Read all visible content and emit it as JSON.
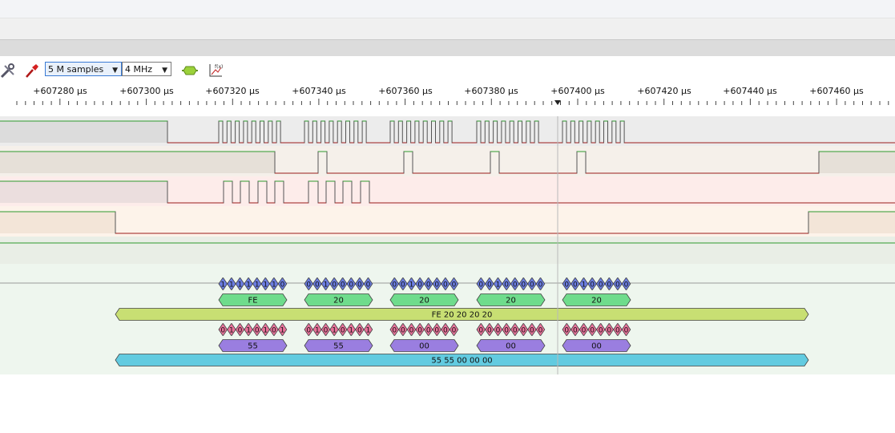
{
  "toolbar": {
    "samples_select": {
      "value": "5 M samples"
    },
    "rate_select": {
      "value": "4 MHz"
    },
    "icons": [
      "wrench-screwdriver-icon",
      "probe-icon",
      "decoder-add-icon",
      "math-function-icon"
    ]
  },
  "ruler": {
    "ticks": [
      "+607280 µs",
      "+607300 µs",
      "+607320 µs",
      "+607340 µs",
      "+607360 µs",
      "+607380 µs",
      "+607400 µs",
      "+607420 µs",
      "+607440 µs",
      "+607460 µs"
    ]
  },
  "colors": {
    "waveform_high": "#2e9a2e",
    "waveform_low": "#9b1b1b",
    "bit_mosi": "#6b7de0",
    "bit_miso": "#e8729a",
    "byte_mosi": "#6fdc8c",
    "byte_miso": "#9a7ee0",
    "transfer_mosi": "#c8df73",
    "transfer_miso": "#62cbe0"
  },
  "decoder": {
    "mosi_bits": [
      "11111110",
      "00100000",
      "00100000",
      "00100000",
      "00100000"
    ],
    "mosi_bytes": [
      "FE",
      "20",
      "20",
      "20",
      "20"
    ],
    "mosi_transfer": "FE 20 20 20 20",
    "miso_bits": [
      "01010101",
      "01010101",
      "00000000",
      "00000000",
      "00000000"
    ],
    "miso_bytes": [
      "55",
      "55",
      "00",
      "00",
      "00"
    ],
    "miso_transfer": "55 55 00 00 00"
  }
}
